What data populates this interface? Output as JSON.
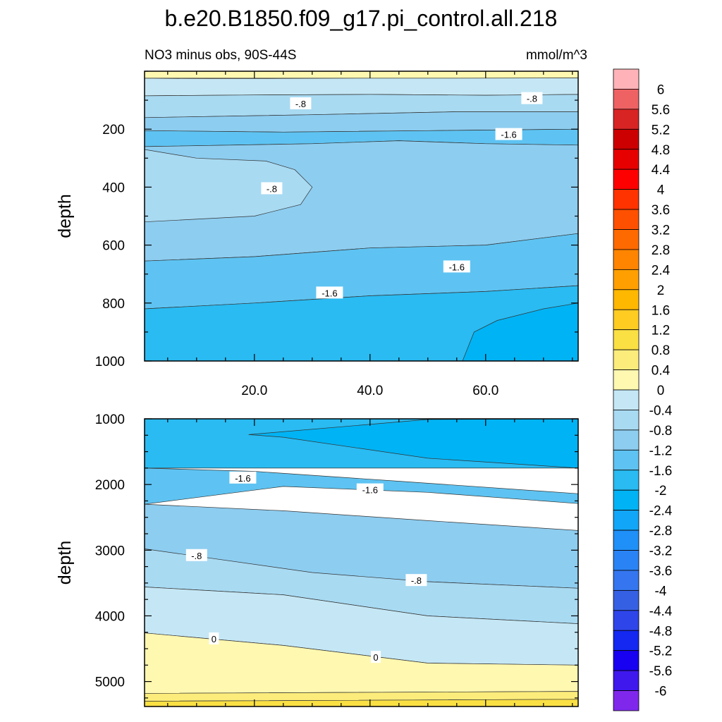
{
  "chart_data": [
    {
      "type": "contour",
      "panel": "upper",
      "title": "b.e20.B1850.f09_g17.pi_control.all.218",
      "left_subtitle": "NO3 minus obs, 90S-44S",
      "right_subtitle": "mmol/m^3",
      "xlabel": "",
      "ylabel": "depth",
      "x_range": [
        1,
        76
      ],
      "y_range": [
        0,
        1000
      ],
      "y_reversed": true,
      "x_ticks": [
        {
          "value": 20,
          "label": "20.0"
        },
        {
          "value": 40,
          "label": "40.0"
        },
        {
          "value": 60,
          "label": "60.0"
        }
      ],
      "y_ticks": [
        {
          "value": 200,
          "label": "200"
        },
        {
          "value": 400,
          "label": "400"
        },
        {
          "value": 600,
          "label": "600"
        },
        {
          "value": 800,
          "label": "800"
        },
        {
          "value": 1000,
          "label": "1000"
        }
      ],
      "layers": [
        {
          "level": "0 to 0.4",
          "color": "#FFF8B0",
          "boundary": [
            [
              1,
              0
            ],
            [
              76,
              0
            ],
            [
              76,
              24
            ],
            [
              1,
              24
            ]
          ]
        },
        {
          "level": "-0.4 to 0",
          "color": "#C5E7F5",
          "boundary": [
            [
              1,
              24
            ],
            [
              12,
              26
            ],
            [
              25,
              25
            ],
            [
              40,
              24
            ],
            [
              55,
              24
            ],
            [
              76,
              23
            ],
            [
              76,
              80
            ],
            [
              60,
              83
            ],
            [
              40,
              80
            ],
            [
              20,
              82
            ],
            [
              1,
              85
            ]
          ]
        },
        {
          "level": "-0.8 to -0.4",
          "color": "#A8DAF2",
          "boundary": [
            [
              1,
              85
            ],
            [
              20,
              82
            ],
            [
              40,
              80
            ],
            [
              60,
              83
            ],
            [
              76,
              80
            ],
            [
              76,
              140
            ],
            [
              55,
              140
            ],
            [
              30,
              150
            ],
            [
              1,
              160
            ]
          ]
        },
        {
          "level": "-1.2 to -0.8",
          "color": "#8DCDF0",
          "boundary": [
            [
              1,
              160
            ],
            [
              30,
              150
            ],
            [
              55,
              140
            ],
            [
              76,
              140
            ],
            [
              76,
              200
            ],
            [
              50,
              205
            ],
            [
              25,
              210
            ],
            [
              1,
              205
            ]
          ]
        },
        {
          "level": "-1.6 to -1.2",
          "color": "#5EC3F2",
          "boundary": [
            [
              1,
              205
            ],
            [
              25,
              210
            ],
            [
              50,
              205
            ],
            [
              76,
              200
            ],
            [
              76,
              255
            ],
            [
              60,
              250
            ],
            [
              45,
              240
            ],
            [
              30,
              250
            ],
            [
              1,
              260
            ]
          ]
        },
        {
          "level": "-1.2 to -0.8",
          "color": "#8DCDF0",
          "boundary": [
            [
              1,
              260
            ],
            [
              30,
              250
            ],
            [
              45,
              240
            ],
            [
              60,
              250
            ],
            [
              76,
              255
            ],
            [
              76,
              560
            ],
            [
              60,
              600
            ],
            [
              40,
              610
            ],
            [
              20,
              640
            ],
            [
              1,
              655
            ]
          ]
        },
        {
          "level": "-0.8 to -0.4",
          "color": "#A8DAF2",
          "boundary": [
            [
              1,
              270
            ],
            [
              10,
              300
            ],
            [
              22,
              310
            ],
            [
              27,
              340
            ],
            [
              30,
              400
            ],
            [
              28,
              460
            ],
            [
              20,
              500
            ],
            [
              1,
              520
            ]
          ]
        },
        {
          "level": "-1.6 to -1.2",
          "color": "#5EC3F2",
          "boundary": [
            [
              1,
              655
            ],
            [
              20,
              640
            ],
            [
              40,
              610
            ],
            [
              60,
              600
            ],
            [
              76,
              560
            ],
            [
              76,
              740
            ],
            [
              60,
              760
            ],
            [
              40,
              775
            ],
            [
              20,
              800
            ],
            [
              1,
              820
            ]
          ]
        },
        {
          "level": "-2 to -1.6",
          "color": "#29BBF2",
          "boundary": [
            [
              1,
              820
            ],
            [
              20,
              800
            ],
            [
              40,
              775
            ],
            [
              60,
              760
            ],
            [
              76,
              740
            ],
            [
              76,
              1000
            ],
            [
              1,
              1000
            ]
          ]
        },
        {
          "level": "-2.4 to -2",
          "color": "#00B3F4",
          "boundary": [
            [
              56,
              1000
            ],
            [
              58,
              900
            ],
            [
              62,
              860
            ],
            [
              70,
              820
            ],
            [
              76,
              800
            ],
            [
              76,
              1000
            ]
          ]
        }
      ],
      "contour_labels": [
        {
          "x": 28,
          "y": 112,
          "text": "-.8"
        },
        {
          "x": 68,
          "y": 94,
          "text": "-.8"
        },
        {
          "x": 64,
          "y": 218,
          "text": "-1.6"
        },
        {
          "x": 23,
          "y": 405,
          "text": "-.8"
        },
        {
          "x": 55,
          "y": 675,
          "text": "-1.6"
        },
        {
          "x": 33,
          "y": 765,
          "text": "-1.6"
        }
      ]
    },
    {
      "type": "contour",
      "panel": "lower",
      "xlabel": "",
      "ylabel": "depth",
      "x_range": [
        1,
        76
      ],
      "y_range": [
        1000,
        5380
      ],
      "y_reversed": true,
      "x_ticks": [
        {
          "value": 20
        },
        {
          "value": 40
        },
        {
          "value": 60
        }
      ],
      "y_ticks": [
        {
          "value": 1000,
          "label": "1000"
        },
        {
          "value": 2000,
          "label": "2000"
        },
        {
          "value": 3000,
          "label": "3000"
        },
        {
          "value": 4000,
          "label": "4000"
        },
        {
          "value": 5000,
          "label": "5000"
        }
      ],
      "layers": [
        {
          "level": "-2 to -1.6",
          "color": "#29BBF2",
          "boundary": [
            [
              1,
              1000
            ],
            [
              76,
              1000
            ],
            [
              76,
              1750
            ],
            [
              1,
              1750
            ]
          ]
        },
        {
          "level": "-2.4 to -2",
          "color": "#00B3F4",
          "boundary": [
            [
              19,
              1240
            ],
            [
              50,
              1010
            ],
            [
              76,
              1000
            ],
            [
              76,
              1750
            ],
            [
              50,
              1600
            ],
            [
              25,
              1280
            ]
          ]
        },
        {
          "level": "-1.6 to -1.2",
          "color": "#5EC3F2",
          "boundary": [
            [
              1,
              1750
            ],
            [
              20,
              1800
            ],
            [
              45,
              1950
            ],
            [
              76,
              2140
            ],
            [
              76,
              2290
            ],
            [
              50,
              2120
            ],
            [
              25,
              2030
            ],
            [
              1,
              2300
            ]
          ]
        },
        {
          "level": "-1.2 to -0.8",
          "color": "#8DCDF0",
          "boundary": [
            [
              1,
              2300
            ],
            [
              25,
              2400
            ],
            [
              50,
              2550
            ],
            [
              76,
              2700
            ],
            [
              76,
              3580
            ],
            [
              50,
              3480
            ],
            [
              30,
              3390
            ],
            [
              1,
              3100
            ]
          ]
        },
        {
          "level": "-0.8 to -0.4",
          "color": "#A8DAF2",
          "boundary": [
            [
              1,
              2980
            ],
            [
              30,
              3340
            ],
            [
              50,
              3480
            ],
            [
              76,
              3580
            ],
            [
              76,
              4120
            ],
            [
              50,
              4000
            ],
            [
              25,
              3680
            ],
            [
              1,
              3560
            ]
          ]
        },
        {
          "level": "-0.4 to 0",
          "color": "#C5E7F5",
          "boundary": [
            [
              1,
              3560
            ],
            [
              25,
              3680
            ],
            [
              50,
              4000
            ],
            [
              76,
              4120
            ],
            [
              76,
              4750
            ],
            [
              50,
              4720
            ],
            [
              25,
              4450
            ],
            [
              1,
              4260
            ]
          ]
        },
        {
          "level": "0 to 0.4",
          "color": "#FFF8B0",
          "boundary": [
            [
              1,
              4260
            ],
            [
              25,
              4450
            ],
            [
              50,
              4720
            ],
            [
              76,
              4750
            ],
            [
              76,
              5150
            ],
            [
              1,
              5180
            ]
          ]
        },
        {
          "level": "0.4 to 0.8",
          "color": "#FCEC7B",
          "boundary": [
            [
              1,
              5180
            ],
            [
              76,
              5150
            ],
            [
              76,
              5270
            ],
            [
              1,
              5300
            ]
          ]
        },
        {
          "level": "0.8 to 1.2",
          "color": "#FBE044",
          "boundary": [
            [
              1,
              5300
            ],
            [
              76,
              5270
            ],
            [
              76,
              5380
            ],
            [
              1,
              5380
            ]
          ]
        }
      ],
      "contour_labels": [
        {
          "x": 18,
          "y": 1900,
          "text": "-1.6"
        },
        {
          "x": 40,
          "y": 2080,
          "text": "-1.6"
        },
        {
          "x": 10,
          "y": 3080,
          "text": "-.8"
        },
        {
          "x": 48,
          "y": 3460,
          "text": "-.8"
        },
        {
          "x": 13,
          "y": 4350,
          "text": "0"
        },
        {
          "x": 41,
          "y": 4630,
          "text": "0"
        }
      ]
    },
    {
      "type": "colorbar",
      "labels": [
        "6",
        "5.6",
        "5.2",
        "4.8",
        "4.4",
        "4",
        "3.6",
        "3.2",
        "2.8",
        "2.4",
        "2",
        "1.6",
        "1.2",
        "0.8",
        "0.4",
        "0",
        "-0.4",
        "-0.8",
        "-1.2",
        "-1.6",
        "-2",
        "-2.4",
        "-2.8",
        "-3.2",
        "-3.6",
        "-4",
        "-4.4",
        "-4.8",
        "-5.2",
        "-5.6",
        "-6"
      ],
      "colors": [
        "#FFB3B8",
        "#EE6264",
        "#D92424",
        "#CC0000",
        "#E60000",
        "#FF0000",
        "#FF3300",
        "#FF5000",
        "#FF6A00",
        "#FF8500",
        "#FFA000",
        "#FFB800",
        "#FFCC22",
        "#FBE044",
        "#FCEC7B",
        "#FFF8B0",
        "#C5E7F5",
        "#A8DAF2",
        "#8DCDF0",
        "#5EC3F2",
        "#29BBF2",
        "#00B3F4",
        "#12A6F8",
        "#1F90F7",
        "#2A83F5",
        "#3576F0",
        "#3660E3",
        "#2E45E9",
        "#1428F2",
        "#1800F0",
        "#3F18EE",
        "#7F28EC"
      ]
    }
  ]
}
